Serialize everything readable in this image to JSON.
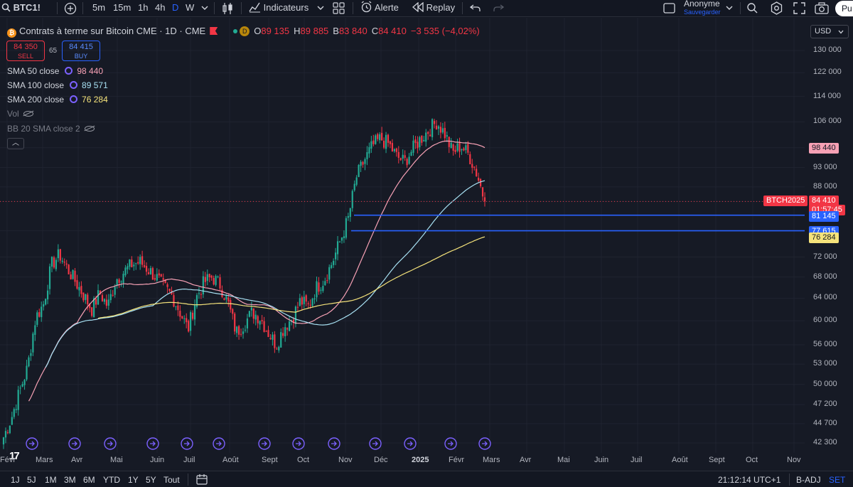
{
  "toolbar": {
    "symbol": "BTC1!",
    "intervals": [
      "5m",
      "15m",
      "1h",
      "4h",
      "D",
      "W"
    ],
    "active_interval": "D",
    "indicators_label": "Indicateurs",
    "alert_label": "Alerte",
    "replay_label": "Replay",
    "account_name": "Anonyme",
    "account_sub": "Sauvegarder",
    "publish_label": "Pu"
  },
  "legend": {
    "title": "Contrats à terme sur Bitcoin CME · 1D · CME",
    "badge": "D",
    "ohlc": [
      {
        "k": "O",
        "v": "89 135"
      },
      {
        "k": "H",
        "v": "89 885"
      },
      {
        "k": "B",
        "v": "83 840"
      },
      {
        "k": "C",
        "v": "84 410"
      }
    ],
    "change": "−3 535 (−4,02%)",
    "sell_price": "84 350",
    "sell_label": "SELL",
    "buy_price": "84 415",
    "buy_label": "BUY",
    "spread": "65",
    "indicators": [
      {
        "name": "SMA 50 close",
        "value": "98 440",
        "color": "#f7a1b5"
      },
      {
        "name": "SMA 100 close",
        "value": "89 571",
        "color": "#a7e0f2"
      },
      {
        "name": "SMA 200 close",
        "value": "76 284",
        "color": "#f5e37b"
      }
    ],
    "vol_label": "Vol",
    "bb_label": "BB 20 SMA close 2"
  },
  "price_scale": {
    "currency": "USD",
    "ticks": [
      "130 000",
      "122 000",
      "114 000",
      "106 000",
      "98 440",
      "93 000",
      "88 000",
      "84 410",
      "77 615",
      "72 000",
      "68 000",
      "64 000",
      "60 000",
      "56 000",
      "53 000",
      "50 000",
      "47 200",
      "44 700",
      "42 300"
    ],
    "labels": {
      "sma50": "98 440",
      "symbol_tag": "BTCH2025",
      "last": "84 410",
      "countdown": "01:57:45",
      "line_high": "81 145",
      "line_low": "77 615",
      "sma200": "76 284"
    }
  },
  "time_axis": [
    "Févr",
    "Mars",
    "Avr",
    "Mai",
    "Juin",
    "Juil",
    "Août",
    "Sept",
    "Oct",
    "Nov",
    "Déc",
    "2025",
    "Févr",
    "Mars",
    "Avr",
    "Mai",
    "Juin",
    "Juil",
    "Août",
    "Sept",
    "Oct",
    "Nov"
  ],
  "bottom": {
    "ranges": [
      "1J",
      "5J",
      "1M",
      "3M",
      "6M",
      "YTD",
      "1Y",
      "5Y",
      "Tout"
    ],
    "clock": "21:12:14 UTC+1",
    "adj": "B-ADJ",
    "session": "SET"
  },
  "colors": {
    "up": "#22ab94",
    "down": "#f23645",
    "sma50": "#f7a1b5",
    "sma100": "#a7e0f2",
    "sma200": "#f5e37b",
    "hline": "#2962ff",
    "event_icon": "#7b61ff"
  },
  "icons": [
    "search-icon",
    "plus-circle-icon",
    "chevron-down-icon",
    "candles-icon",
    "indicators-icon",
    "layout-grid-icon",
    "alarm-clock-icon",
    "replay-icon",
    "undo-icon",
    "redo-icon",
    "settings-icon",
    "fullscreen-icon",
    "camera-icon",
    "eye-off-icon",
    "calendar-range-icon",
    "event-arrow-icon"
  ],
  "chart_data": {
    "type": "candlestick",
    "x_range": [
      "2024-02",
      "2025-11"
    ],
    "y_range": [
      42300,
      130000
    ],
    "y_scale": "log",
    "last_close": 84410,
    "horizontal_lines": [
      81145,
      77615
    ],
    "sma": {
      "sma50": 98440,
      "sma100": 89571,
      "sma200": 76284
    },
    "closes_approx": [
      43000,
      45500,
      49000,
      52500,
      60500,
      63000,
      70500,
      72500,
      69500,
      67000,
      64500,
      62000,
      65000,
      62500,
      67500,
      69000,
      70500,
      71000,
      69500,
      68000,
      66000,
      64500,
      61500,
      58500,
      64000,
      67000,
      68000,
      66500,
      63000,
      58000,
      59500,
      61500,
      60500,
      58000,
      56000,
      59000,
      60500,
      63500,
      62500,
      66000,
      67500,
      71000,
      75500,
      80500,
      90500,
      95000,
      99000,
      101000,
      99500,
      96000,
      94500,
      98000,
      101000,
      103500,
      106000,
      102500,
      97000,
      99000,
      96500,
      91500,
      84410
    ]
  }
}
